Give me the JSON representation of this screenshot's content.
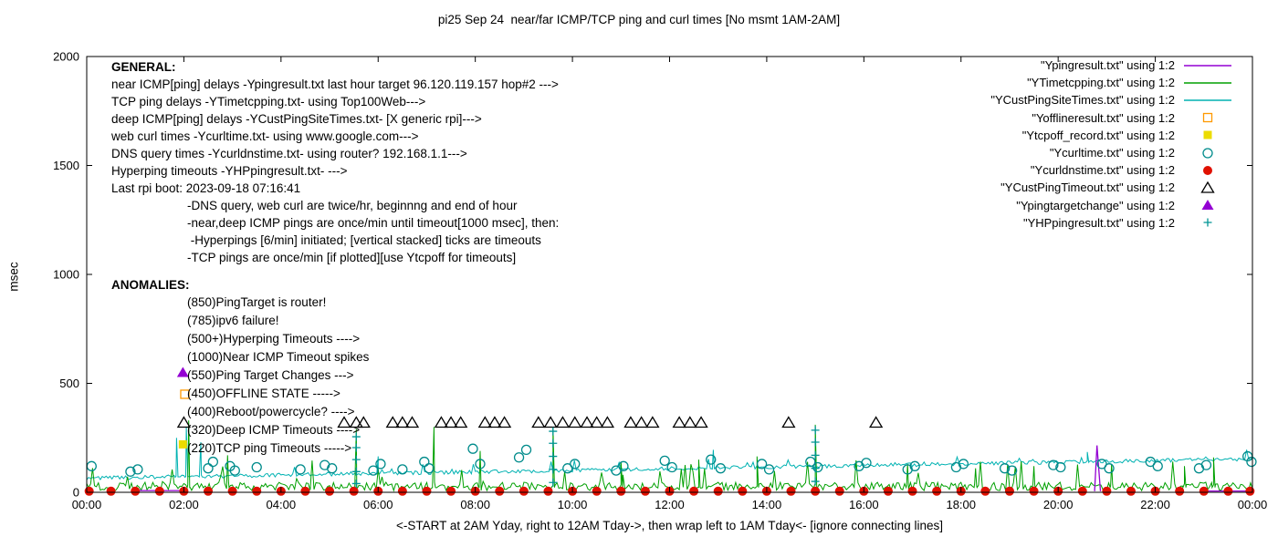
{
  "title": "pi25 Sep 24  near/far ICMP/TCP ping and curl times [No msmt 1AM-2AM]",
  "ylabel": "msec",
  "xlabel": "<-START at 2AM Yday, right to 12AM Tday->, then wrap left to 1AM Tday<- [ignore connecting lines]",
  "axes": {
    "y_ticks": [
      0,
      500,
      1000,
      1500,
      2000
    ],
    "x_ticks": [
      "00:00",
      "02:00",
      "04:00",
      "06:00",
      "08:00",
      "10:00",
      "12:00",
      "14:00",
      "16:00",
      "18:00",
      "20:00",
      "22:00",
      "00:00"
    ]
  },
  "legend": [
    {
      "label": "\"Ypingresult.txt\" using 1:2",
      "marker": "line",
      "color": "#9400d3"
    },
    {
      "label": "\"YTimetcpping.txt\" using 1:2",
      "marker": "line",
      "color": "#00a000"
    },
    {
      "label": "\"YCustPingSiteTimes.txt\" using 1:2",
      "marker": "line",
      "color": "#00b2b2"
    },
    {
      "label": "\"Yofflineresult.txt\" using 1:2",
      "marker": "square-open",
      "color": "#ff9900"
    },
    {
      "label": "\"Ytcpoff_record.txt\" using 1:2",
      "marker": "square-filled",
      "color": "#ecdc00"
    },
    {
      "label": "\"Ycurltime.txt\" using 1:2",
      "marker": "circle-open",
      "color": "#008b8b"
    },
    {
      "label": "\"Ycurldnstime.txt\" using 1:2",
      "marker": "circle-filled",
      "color": "#e01000"
    },
    {
      "label": "\"YCustPingTimeout.txt\" using 1:2",
      "marker": "triangle-open",
      "color": "#000000"
    },
    {
      "label": "\"Ypingtargetchange\" using 1:2",
      "marker": "triangle-filled",
      "color": "#9400d3"
    },
    {
      "label": "\"YHPpingresult.txt\" using 1:2",
      "marker": "plus",
      "color": "#009595"
    }
  ],
  "general_text": {
    "heading": "GENERAL:",
    "lines": [
      "near ICMP[ping] delays -Ypingresult.txt last hour target 96.120.119.157 hop#2 --->",
      "TCP ping delays -YTimetcpping.txt- using Top100Web--->",
      "deep ICMP[ping] delays -YCustPingSiteTimes.txt- [X generic rpi]--->",
      "web curl times -Ycurltime.txt- using www.google.com--->",
      "DNS query times -Ycurldnstime.txt- using router? 192.168.1.1--->",
      "Hyperping timeouts -YHPpingresult.txt- --->",
      "Last rpi boot: 2023-09-18 07:16:41"
    ],
    "indented_lines": [
      "-DNS query, web curl are twice/hr, beginnng and end of hour",
      "-near,deep ICMP pings are once/min until timeout[1000 msec], then:",
      " -Hyperpings [6/min] initiated; [vertical stacked] ticks are timeouts",
      "-TCP pings are once/min [if plotted][use Ytcpoff for timeouts]"
    ]
  },
  "anomalies_text": {
    "heading": "ANOMALIES:",
    "lines": [
      "(850)PingTarget is router!",
      "(785)ipv6 failure!",
      "(500+)Hyperping Timeouts ---->",
      "(1000)Near ICMP Timeout spikes",
      "(550)Ping Target Changes --->",
      "(450)OFFLINE STATE ----->",
      "(400)Reboot/powercycle? ---->",
      "(320)Deep ICMP Timeouts ---->",
      "(220)TCP ping Timeouts ----->"
    ]
  },
  "chart_data": {
    "type": "line",
    "x_unit": "hours",
    "x_range": [
      0,
      24
    ],
    "y_range": [
      0,
      2000
    ],
    "series": [
      {
        "name": "YCustPingSiteTimes",
        "kind": "noisy",
        "color": "#00b2b2",
        "start": 0,
        "end": 24,
        "step": 0.04,
        "base_start": 62,
        "base_end": 150,
        "noise": 18,
        "seed": 2,
        "spike_thresh": 0.97,
        "spike_boost": 1200,
        "spikes": [
          [
            1.85,
            250
          ],
          [
            2.05,
            300
          ],
          [
            2.35,
            230
          ],
          [
            6.0,
            165
          ],
          [
            12.9,
            195
          ],
          [
            20.6,
            185
          ]
        ]
      },
      {
        "name": "YTimetcpping",
        "kind": "noisy",
        "color": "#00a000",
        "start": 0,
        "end": 24,
        "step": 0.04,
        "base": 22,
        "noise": 40,
        "seed": 1,
        "spike_thresh": 0.955,
        "spike_boost": 2200,
        "spikes": [
          [
            2.1,
            330
          ],
          [
            2.9,
            170
          ],
          [
            5.55,
            290
          ],
          [
            7.15,
            300
          ],
          [
            8.1,
            190
          ],
          [
            9.6,
            300
          ],
          [
            11.0,
            140
          ],
          [
            12.6,
            150
          ],
          [
            13.8,
            165
          ],
          [
            15.0,
            310
          ],
          [
            16.9,
            130
          ],
          [
            18.3,
            110
          ],
          [
            19.5,
            120
          ],
          [
            21.1,
            130
          ],
          [
            22.6,
            120
          ],
          [
            23.2,
            160
          ]
        ]
      },
      {
        "name": "Ypingresult",
        "kind": "segments",
        "color": "#9400d3",
        "segments": [
          [
            [
              0.95,
              8
            ],
            [
              2.05,
              8
            ]
          ],
          [
            [
              20.75,
              5
            ],
            [
              20.8,
              215
            ],
            [
              20.87,
              5
            ]
          ],
          [
            [
              23.05,
              6
            ],
            [
              23.98,
              6
            ]
          ]
        ]
      }
    ],
    "markers": [
      {
        "name": "Yofflineresult",
        "marker": "square-open",
        "color": "#ff9900",
        "points": [
          [
            2.02,
            450
          ]
        ]
      },
      {
        "name": "Ytcpoff_record",
        "marker": "square-filled",
        "color": "#ecdc00",
        "points": [
          [
            1.98,
            220
          ]
        ]
      },
      {
        "name": "Ycurltime",
        "marker": "circle-open",
        "color": "#008b8b",
        "points": [
          [
            0.1,
            120
          ],
          [
            0.9,
            95
          ],
          [
            1.05,
            105
          ],
          [
            2.5,
            110
          ],
          [
            2.6,
            140
          ],
          [
            2.95,
            120
          ],
          [
            3.05,
            100
          ],
          [
            3.5,
            115
          ],
          [
            4.4,
            105
          ],
          [
            4.9,
            125
          ],
          [
            5.05,
            110
          ],
          [
            5.9,
            100
          ],
          [
            6.05,
            130
          ],
          [
            6.5,
            105
          ],
          [
            6.95,
            140
          ],
          [
            7.05,
            110
          ],
          [
            7.95,
            200
          ],
          [
            8.1,
            130
          ],
          [
            8.9,
            160
          ],
          [
            9.05,
            195
          ],
          [
            9.9,
            110
          ],
          [
            10.05,
            130
          ],
          [
            10.9,
            100
          ],
          [
            11.05,
            120
          ],
          [
            11.9,
            145
          ],
          [
            12.05,
            115
          ],
          [
            12.85,
            150
          ],
          [
            13.05,
            110
          ],
          [
            13.9,
            130
          ],
          [
            14.05,
            105
          ],
          [
            14.9,
            140
          ],
          [
            15.05,
            115
          ],
          [
            15.9,
            120
          ],
          [
            16.05,
            135
          ],
          [
            16.9,
            105
          ],
          [
            17.05,
            120
          ],
          [
            17.9,
            115
          ],
          [
            18.05,
            130
          ],
          [
            18.9,
            110
          ],
          [
            19.05,
            100
          ],
          [
            19.9,
            125
          ],
          [
            20.05,
            115
          ],
          [
            20.9,
            130
          ],
          [
            21.05,
            110
          ],
          [
            21.9,
            140
          ],
          [
            22.05,
            120
          ],
          [
            22.9,
            110
          ],
          [
            23.05,
            125
          ],
          [
            23.9,
            165
          ],
          [
            23.98,
            140
          ]
        ]
      },
      {
        "name": "Ycurldnstime",
        "marker": "circle-filled",
        "color": "#e01000",
        "y": 5,
        "xs": [
          0.05,
          0.5,
          1.0,
          1.5,
          2.0,
          2.5,
          3.0,
          3.5,
          4.0,
          4.5,
          5.0,
          5.5,
          6.0,
          6.5,
          7.0,
          7.5,
          8.0,
          8.5,
          9.0,
          9.5,
          10.0,
          10.5,
          11.0,
          11.5,
          12.0,
          12.5,
          13.0,
          13.5,
          14.0,
          14.5,
          15.0,
          15.5,
          16.0,
          16.5,
          17.0,
          17.5,
          18.0,
          18.5,
          19.0,
          19.5,
          20.0,
          20.5,
          21.0,
          21.5,
          22.0,
          22.5,
          23.0,
          23.5,
          23.95
        ]
      },
      {
        "name": "YCustPingTimeout",
        "marker": "triangle-open",
        "color": "#000000",
        "y": 320,
        "xs": [
          2.0,
          5.3,
          5.55,
          5.7,
          6.3,
          6.5,
          6.7,
          7.3,
          7.5,
          7.7,
          8.2,
          8.4,
          8.6,
          9.3,
          9.55,
          9.8,
          10.05,
          10.3,
          10.5,
          10.72,
          11.2,
          11.42,
          11.65,
          12.2,
          12.42,
          12.65,
          14.45,
          16.25
        ]
      },
      {
        "name": "Ypingtargetchange",
        "marker": "triangle-filled",
        "color": "#9400d3",
        "points": [
          [
            1.98,
            550
          ]
        ]
      },
      {
        "name": "YHPpingresult",
        "marker": "plus",
        "color": "#009595",
        "points": [
          [
            5.55,
            40
          ],
          [
            5.55,
            95
          ],
          [
            5.55,
            150
          ],
          [
            5.55,
            205
          ],
          [
            5.55,
            255
          ],
          [
            9.6,
            45
          ],
          [
            9.6,
            105
          ],
          [
            9.6,
            165
          ],
          [
            9.6,
            225
          ],
          [
            9.6,
            280
          ],
          [
            15.0,
            50
          ],
          [
            15.0,
            110
          ],
          [
            15.0,
            170
          ],
          [
            15.0,
            230
          ],
          [
            15.0,
            285
          ]
        ]
      }
    ]
  }
}
